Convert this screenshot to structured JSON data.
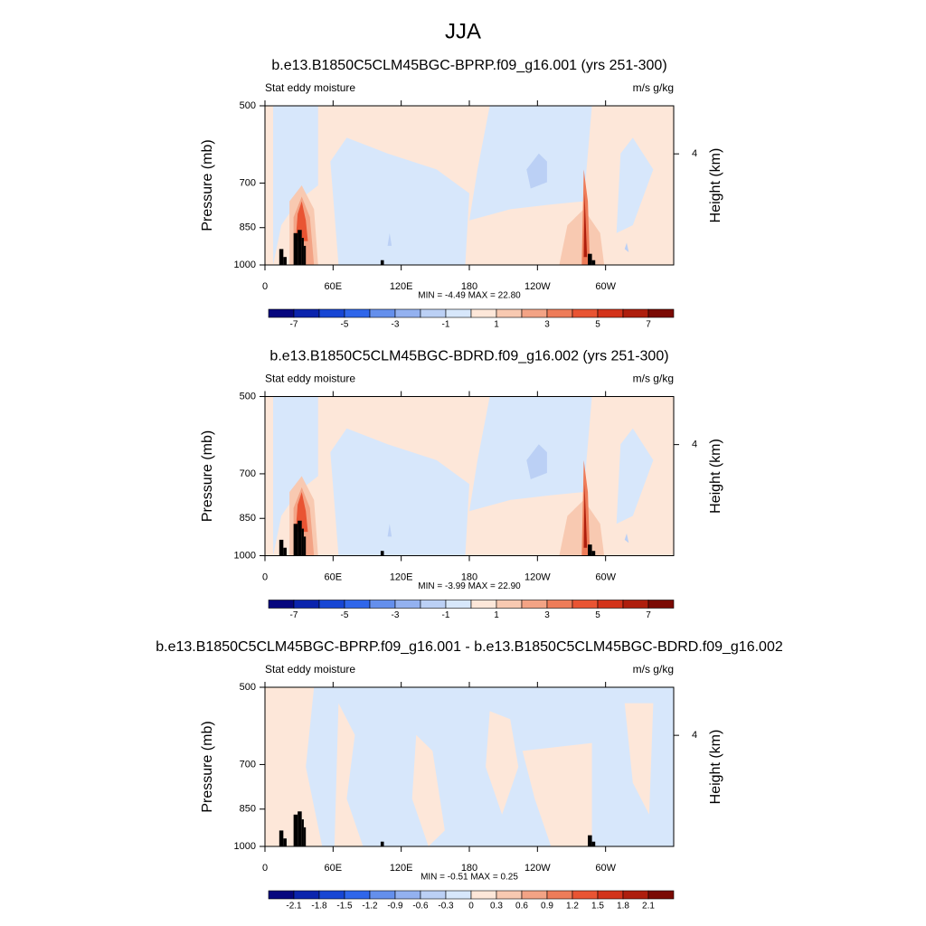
{
  "title": "JJA",
  "chart_data": [
    {
      "type": "contour",
      "title": "b.e13.B1850C5CLM45BGC-BPRP.f09_g16.001 (yrs 251-300)",
      "left_label": "Stat eddy moisture",
      "right_label": "m/s g/kg",
      "ylabel": "Pressure (mb)",
      "y2label": "Height (km)",
      "xlim": [
        0,
        360
      ],
      "xticks": [
        0,
        {
          "value": 60,
          "label": "60E"
        },
        {
          "value": 120,
          "label": "120E"
        },
        180,
        {
          "value": 240,
          "label": "120W"
        },
        {
          "value": 300,
          "label": "60W"
        }
      ],
      "ylim": [
        1000,
        500
      ],
      "log": true,
      "yticks": [
        500,
        700,
        850,
        1000
      ],
      "y2ticks": [
        4
      ],
      "stats": "MIN =  -4.49  MAX =  22.80",
      "colorbar": {
        "levels": [
          -7,
          -6,
          -5,
          -4,
          -3,
          -2,
          -1,
          0,
          1,
          2,
          3,
          4,
          5,
          6,
          7
        ],
        "ticks": [
          -7,
          -5,
          -3,
          -1,
          1,
          3,
          5,
          7
        ],
        "colors": [
          "#06067e",
          "#0b24ad",
          "#1746d4",
          "#2f66ea",
          "#648fec",
          "#93b1f0",
          "#bbd0f5",
          "#d7e7fb",
          "#fde7d9",
          "#f8c9b1",
          "#f3a385",
          "#ee7c59",
          "#e95433",
          "#d3331a",
          "#ae1e0d",
          "#7b0a04"
        ]
      }
    },
    {
      "type": "contour",
      "title": "b.e13.B1850C5CLM45BGC-BDRD.f09_g16.002 (yrs 251-300)",
      "left_label": "Stat eddy moisture",
      "right_label": "m/s g/kg",
      "ylabel": "Pressure (mb)",
      "y2label": "Height (km)",
      "xlim": [
        0,
        360
      ],
      "xticks": [
        0,
        {
          "value": 60,
          "label": "60E"
        },
        {
          "value": 120,
          "label": "120E"
        },
        180,
        {
          "value": 240,
          "label": "120W"
        },
        {
          "value": 300,
          "label": "60W"
        }
      ],
      "ylim": [
        1000,
        500
      ],
      "log": true,
      "yticks": [
        500,
        700,
        850,
        1000
      ],
      "y2ticks": [
        4
      ],
      "stats": "MIN =  -3.99  MAX =  22.90",
      "colorbar": {
        "levels": [
          -7,
          -6,
          -5,
          -4,
          -3,
          -2,
          -1,
          0,
          1,
          2,
          3,
          4,
          5,
          6,
          7
        ],
        "ticks": [
          -7,
          -5,
          -3,
          -1,
          1,
          3,
          5,
          7
        ],
        "colors": [
          "#06067e",
          "#0b24ad",
          "#1746d4",
          "#2f66ea",
          "#648fec",
          "#93b1f0",
          "#bbd0f5",
          "#d7e7fb",
          "#fde7d9",
          "#f8c9b1",
          "#f3a385",
          "#ee7c59",
          "#e95433",
          "#d3331a",
          "#ae1e0d",
          "#7b0a04"
        ]
      }
    },
    {
      "type": "contour",
      "title": "b.e13.B1850C5CLM45BGC-BPRP.f09_g16.001 - b.e13.B1850C5CLM45BGC-BDRD.f09_g16.002",
      "left_label": "Stat eddy moisture",
      "right_label": "m/s g/kg",
      "ylabel": "Pressure (mb)",
      "y2label": "Height (km)",
      "xlim": [
        0,
        360
      ],
      "xticks": [
        0,
        {
          "value": 60,
          "label": "60E"
        },
        {
          "value": 120,
          "label": "120E"
        },
        180,
        {
          "value": 240,
          "label": "120W"
        },
        {
          "value": 300,
          "label": "60W"
        }
      ],
      "ylim": [
        1000,
        500
      ],
      "log": true,
      "yticks": [
        500,
        700,
        850,
        1000
      ],
      "y2ticks": [
        4
      ],
      "stats": "MIN =  -0.51  MAX =   0.25",
      "colorbar": {
        "levels": [
          -2.1,
          -1.8,
          -1.5,
          -1.2,
          -0.9,
          -0.6,
          -0.3,
          0,
          0.3,
          0.6,
          0.9,
          1.2,
          1.5,
          1.8,
          2.1
        ],
        "ticks": [
          -2.1,
          -1.8,
          -1.5,
          -1.2,
          -0.9,
          -0.6,
          -0.3,
          0,
          0.3,
          0.6,
          0.9,
          1.2,
          1.5,
          1.8,
          2.1
        ],
        "colors": [
          "#06067e",
          "#0b24ad",
          "#1746d4",
          "#2f66ea",
          "#648fec",
          "#93b1f0",
          "#bbd0f5",
          "#d7e7fb",
          "#fde7d9",
          "#f8c9b1",
          "#f3a385",
          "#ee7c59",
          "#e95433",
          "#d3331a",
          "#ae1e0d",
          "#7b0a04"
        ]
      }
    }
  ]
}
